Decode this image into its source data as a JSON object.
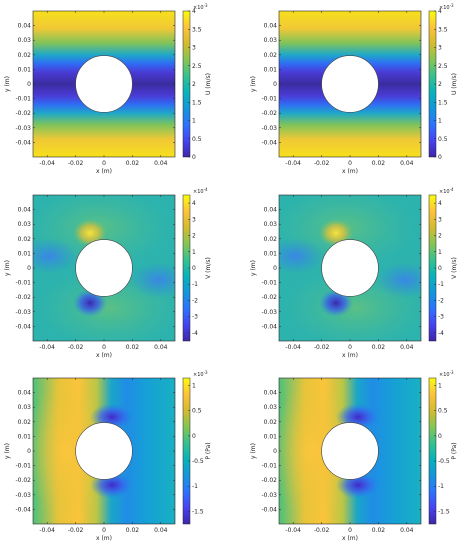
{
  "figure": {
    "panels": [
      {
        "id": "u-left",
        "row": 0,
        "col": 0,
        "field": "U",
        "cbar_label": "U (m/s)",
        "cbar_exp": "10",
        "cbar_exp_pow": "-3",
        "ticks": [
          "4",
          "3.5",
          "3",
          "2.5",
          "2",
          "1.5",
          "1",
          "0.5",
          "0"
        ],
        "crange": [
          0,
          4
        ]
      },
      {
        "id": "u-right",
        "row": 0,
        "col": 1,
        "field": "U",
        "cbar_label": "U (m/s)",
        "cbar_exp": "10",
        "cbar_exp_pow": "-3",
        "ticks": [
          "4",
          "3.5",
          "3",
          "2.5",
          "2",
          "1.5",
          "1",
          "0.5",
          "0"
        ],
        "crange": [
          0,
          4
        ]
      },
      {
        "id": "v-left",
        "row": 1,
        "col": 0,
        "field": "V",
        "cbar_label": "V (m/s)",
        "cbar_exp": "10",
        "cbar_exp_pow": "-4",
        "ticks": [
          "4",
          "3",
          "2",
          "1",
          "0",
          "-1",
          "-2",
          "-3",
          "-4"
        ],
        "crange": [
          -4.5,
          4.5
        ]
      },
      {
        "id": "v-right",
        "row": 1,
        "col": 1,
        "field": "V",
        "cbar_label": "V (m/s)",
        "cbar_exp": "10",
        "cbar_exp_pow": "-4",
        "ticks": [
          "4",
          "3",
          "2",
          "1",
          "0",
          "-1",
          "-2",
          "-3",
          "-4"
        ],
        "crange": [
          -4.5,
          4.5
        ]
      },
      {
        "id": "p-left",
        "row": 2,
        "col": 0,
        "field": "P",
        "cbar_label": "P (Pa)",
        "cbar_exp": "10",
        "cbar_exp_pow": "-3",
        "ticks": [
          "1",
          "0.5",
          "0",
          "-0.5",
          "-1",
          "-1.5"
        ],
        "crange": [
          -1.75,
          1.15
        ]
      },
      {
        "id": "p-right",
        "row": 2,
        "col": 1,
        "field": "P",
        "cbar_label": "P (Pa)",
        "cbar_exp": "10",
        "cbar_exp_pow": "-3",
        "ticks": [
          "1",
          "0.5",
          "0",
          "-0.5",
          "-1",
          "-1.5"
        ],
        "crange": [
          -1.75,
          1.15
        ]
      }
    ],
    "xlabel": "x (m)",
    "ylabel": "y (m)",
    "xticks": [
      "-0.04",
      "-0.02",
      "0",
      "0.02",
      "0.04"
    ],
    "yticks": [
      "0.04",
      "0.03",
      "0.02",
      "0.01",
      "0",
      "-0.01",
      "-0.02",
      "-0.03",
      "-0.04"
    ]
  },
  "chart_data": [
    {
      "type": "heatmap",
      "title": "",
      "xlabel": "x (m)",
      "ylabel": "y (m)",
      "colorbar_label": "U (m/s)",
      "colorbar_scale": "x10^-3",
      "xlim": [
        -0.05,
        0.05
      ],
      "ylim": [
        -0.05,
        0.05
      ],
      "clim": [
        0,
        0.004
      ],
      "obstacle": {
        "shape": "circle",
        "center": [
          0,
          0
        ],
        "radius": 0.02
      }
    },
    {
      "type": "heatmap",
      "title": "",
      "xlabel": "x (m)",
      "ylabel": "y (m)",
      "colorbar_label": "U (m/s)",
      "colorbar_scale": "x10^-3",
      "xlim": [
        -0.05,
        0.05
      ],
      "ylim": [
        -0.05,
        0.05
      ],
      "clim": [
        0,
        0.004
      ],
      "obstacle": {
        "shape": "circle",
        "center": [
          0,
          0
        ],
        "radius": 0.02
      }
    },
    {
      "type": "heatmap",
      "title": "",
      "xlabel": "x (m)",
      "ylabel": "y (m)",
      "colorbar_label": "V (m/s)",
      "colorbar_scale": "x10^-4",
      "xlim": [
        -0.05,
        0.05
      ],
      "ylim": [
        -0.05,
        0.05
      ],
      "clim": [
        -0.00045,
        0.00045
      ],
      "obstacle": {
        "shape": "circle",
        "center": [
          0,
          0
        ],
        "radius": 0.02
      }
    },
    {
      "type": "heatmap",
      "title": "",
      "xlabel": "x (m)",
      "ylabel": "y (m)",
      "colorbar_label": "V (m/s)",
      "colorbar_scale": "x10^-4",
      "xlim": [
        -0.05,
        0.05
      ],
      "ylim": [
        -0.05,
        0.05
      ],
      "clim": [
        -0.00045,
        0.00045
      ],
      "obstacle": {
        "shape": "circle",
        "center": [
          0,
          0
        ],
        "radius": 0.02
      }
    },
    {
      "type": "heatmap",
      "title": "",
      "xlabel": "x (m)",
      "ylabel": "y (m)",
      "colorbar_label": "P (Pa)",
      "colorbar_scale": "x10^-3",
      "xlim": [
        -0.05,
        0.05
      ],
      "ylim": [
        -0.05,
        0.05
      ],
      "clim": [
        -0.00175,
        0.00115
      ],
      "obstacle": {
        "shape": "circle",
        "center": [
          0,
          0
        ],
        "radius": 0.02
      }
    },
    {
      "type": "heatmap",
      "title": "",
      "xlabel": "x (m)",
      "ylabel": "y (m)",
      "colorbar_label": "P (Pa)",
      "colorbar_scale": "x10^-3",
      "xlim": [
        -0.05,
        0.05
      ],
      "ylim": [
        -0.05,
        0.05
      ],
      "clim": [
        -0.00175,
        0.00115
      ],
      "obstacle": {
        "shape": "circle",
        "center": [
          0,
          0
        ],
        "radius": 0.02
      }
    }
  ]
}
